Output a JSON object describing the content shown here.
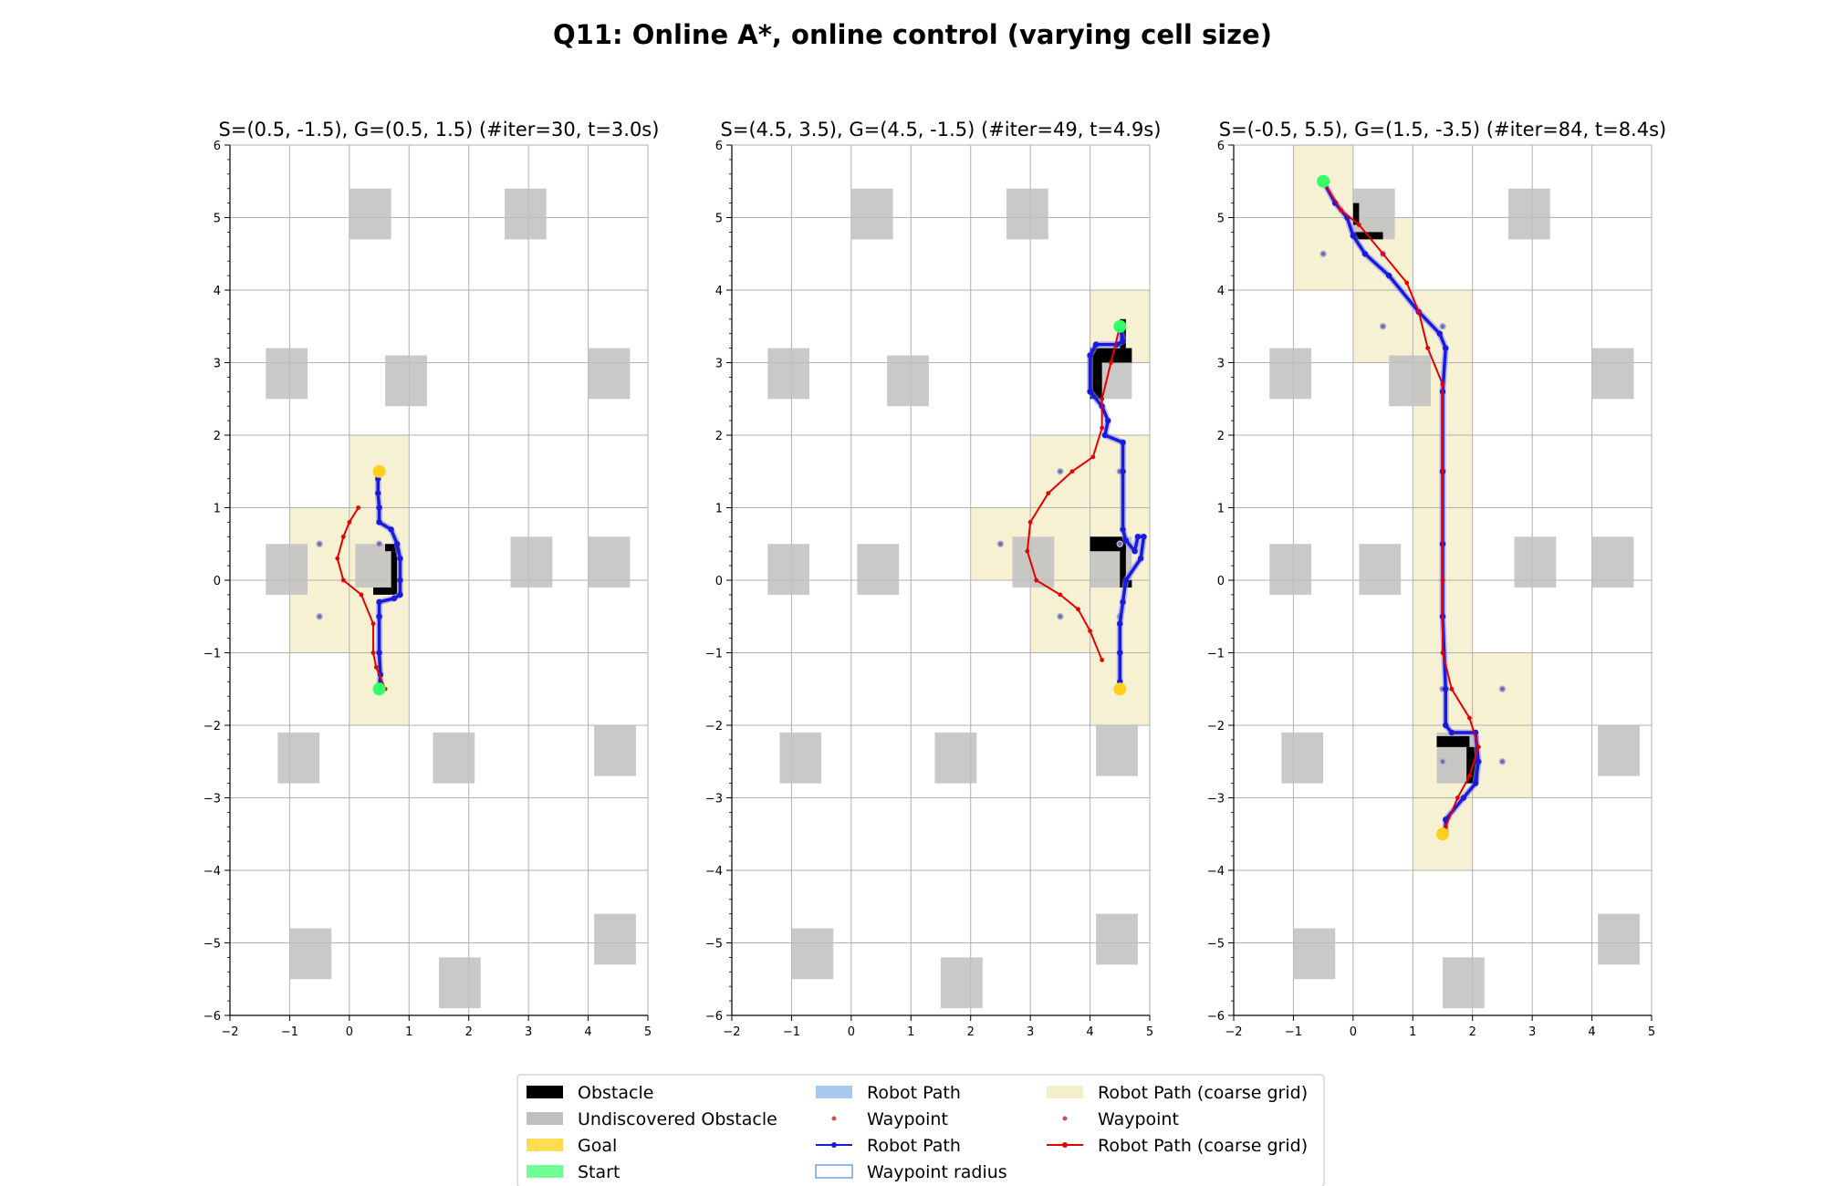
{
  "figure": {
    "title": "Q11: Online A*, online control (varying cell size)"
  },
  "colors": {
    "obstacle": "#000000",
    "undiscovered": "#bfbfbf",
    "goal": "#ffd11a",
    "start": "#33ff66",
    "coarse_cell": "#f5eecb",
    "robot_path": "#1a1adb",
    "coarse_path": "#e60000",
    "waypoint": "#7070a0",
    "grid": "#b0b0b0"
  },
  "chart_data": [
    {
      "type": "scatter",
      "title": "S=(0.5, -1.5), G=(0.5, 1.5) (#iter=30, t=3.0s)",
      "xlim": [
        -2,
        5
      ],
      "ylim": [
        -6,
        6
      ],
      "xticks": [
        -2,
        -1,
        0,
        1,
        2,
        3,
        4,
        5
      ],
      "yticks": [
        -6,
        -5,
        -4,
        -3,
        -2,
        -1,
        0,
        1,
        2,
        3,
        4,
        5,
        6
      ],
      "grid": true,
      "start": [
        0.5,
        -1.5
      ],
      "goal": [
        0.5,
        1.5
      ],
      "coarse_cells": [
        [
          0,
          1,
          1,
          2
        ],
        [
          -1,
          0,
          0,
          1
        ],
        [
          0,
          0,
          1,
          1
        ],
        [
          -1,
          -1,
          0,
          0
        ],
        [
          0,
          -1,
          1,
          0
        ],
        [
          0,
          -2,
          1,
          -1
        ]
      ],
      "discovered_obstacles": [
        [
          0.6,
          0.4,
          0.8,
          0.5
        ],
        [
          0.7,
          -0.2,
          0.8,
          0.4
        ],
        [
          0.4,
          -0.2,
          0.7,
          -0.1
        ]
      ],
      "waypoints": [
        [
          0.5,
          1.5
        ],
        [
          -0.5,
          0.5
        ],
        [
          0.5,
          0.5
        ],
        [
          -0.5,
          -0.5
        ],
        [
          0.5,
          -0.5
        ],
        [
          0.5,
          -1.5
        ]
      ],
      "robot_path": [
        [
          0.5,
          -1.5
        ],
        [
          0.52,
          -1.3
        ],
        [
          0.5,
          -1.0
        ],
        [
          0.5,
          -0.5
        ],
        [
          0.5,
          -0.3
        ],
        [
          0.75,
          -0.25
        ],
        [
          0.85,
          -0.2
        ],
        [
          0.85,
          0.0
        ],
        [
          0.85,
          0.3
        ],
        [
          0.8,
          0.5
        ],
        [
          0.7,
          0.7
        ],
        [
          0.5,
          0.8
        ],
        [
          0.5,
          1.0
        ],
        [
          0.48,
          1.2
        ],
        [
          0.48,
          1.4
        ]
      ],
      "coarse_path": [
        [
          0.6,
          -1.5
        ],
        [
          0.45,
          -1.2
        ],
        [
          0.4,
          -1.0
        ],
        [
          0.4,
          -0.6
        ],
        [
          0.2,
          -0.2
        ],
        [
          -0.1,
          0.0
        ],
        [
          -0.2,
          0.3
        ],
        [
          -0.1,
          0.6
        ],
        [
          0.0,
          0.8
        ],
        [
          0.15,
          1.0
        ]
      ],
      "undiscovered_obstacles": [
        [
          0,
          4.7,
          0.7,
          5.4
        ],
        [
          2.6,
          4.7,
          3.3,
          5.4
        ],
        [
          -1.4,
          2.5,
          -0.7,
          3.2
        ],
        [
          0.6,
          2.4,
          1.3,
          3.1
        ],
        [
          4.0,
          2.5,
          4.7,
          3.2
        ],
        [
          -1.4,
          -0.2,
          -0.7,
          0.5
        ],
        [
          0.1,
          -0.1,
          0.8,
          0.5
        ],
        [
          2.7,
          -0.1,
          3.4,
          0.6
        ],
        [
          4.0,
          -0.1,
          4.7,
          0.6
        ],
        [
          -1.2,
          -2.8,
          -0.5,
          -2.1
        ],
        [
          1.4,
          -2.8,
          2.1,
          -2.1
        ],
        [
          4.1,
          -2.7,
          4.8,
          -2.0
        ],
        [
          -1.0,
          -5.5,
          -0.3,
          -4.8
        ],
        [
          1.5,
          -5.9,
          2.2,
          -5.2
        ],
        [
          4.1,
          -5.3,
          4.8,
          -4.6
        ]
      ]
    },
    {
      "type": "scatter",
      "title": "S=(4.5, 3.5), G=(4.5, -1.5) (#iter=49, t=4.9s)",
      "xlim": [
        -2,
        5
      ],
      "ylim": [
        -6,
        6
      ],
      "xticks": [
        -2,
        -1,
        0,
        1,
        2,
        3,
        4,
        5
      ],
      "yticks": [
        -6,
        -5,
        -4,
        -3,
        -2,
        -1,
        0,
        1,
        2,
        3,
        4,
        5,
        6
      ],
      "grid": true,
      "start": [
        4.5,
        3.5
      ],
      "goal": [
        4.5,
        -1.5
      ],
      "coarse_cells": [
        [
          4,
          3,
          5,
          4
        ],
        [
          3,
          1,
          5,
          2
        ],
        [
          2,
          0,
          3,
          1
        ],
        [
          3,
          0,
          5,
          1
        ],
        [
          3,
          -1,
          5,
          0
        ],
        [
          4,
          -2,
          5,
          -1
        ]
      ],
      "discovered_obstacles": [
        [
          4.0,
          3.0,
          4.7,
          3.2
        ],
        [
          4.0,
          2.5,
          4.2,
          3.0
        ],
        [
          4.5,
          3.2,
          4.6,
          3.6
        ],
        [
          4.0,
          0.4,
          4.6,
          0.6
        ],
        [
          4.5,
          0.0,
          4.6,
          0.5
        ],
        [
          4.5,
          -0.1,
          4.7,
          0.0
        ]
      ],
      "waypoints": [
        [
          4.5,
          3.5
        ],
        [
          3.5,
          1.5
        ],
        [
          4.5,
          1.5
        ],
        [
          2.5,
          0.5
        ],
        [
          4.5,
          0.5
        ],
        [
          3.5,
          -0.5
        ],
        [
          4.5,
          -0.5
        ],
        [
          4.5,
          -1.5
        ]
      ],
      "robot_path": [
        [
          4.5,
          3.5
        ],
        [
          4.55,
          3.3
        ],
        [
          4.45,
          3.25
        ],
        [
          4.1,
          3.25
        ],
        [
          4.0,
          3.1
        ],
        [
          4.0,
          2.6
        ],
        [
          4.2,
          2.4
        ],
        [
          4.3,
          2.2
        ],
        [
          4.25,
          2.0
        ],
        [
          4.55,
          1.9
        ],
        [
          4.55,
          1.5
        ],
        [
          4.55,
          0.7
        ],
        [
          4.6,
          0.55
        ],
        [
          4.75,
          0.4
        ],
        [
          4.8,
          0.6
        ],
        [
          4.9,
          0.6
        ],
        [
          4.85,
          0.3
        ],
        [
          4.6,
          0.0
        ],
        [
          4.55,
          -0.3
        ],
        [
          4.5,
          -0.6
        ],
        [
          4.5,
          -1.0
        ],
        [
          4.5,
          -1.4
        ]
      ],
      "coarse_path": [
        [
          4.5,
          3.5
        ],
        [
          4.35,
          3.0
        ],
        [
          4.2,
          2.5
        ],
        [
          4.2,
          2.1
        ],
        [
          4.05,
          1.7
        ],
        [
          3.7,
          1.5
        ],
        [
          3.3,
          1.2
        ],
        [
          3.0,
          0.8
        ],
        [
          2.95,
          0.4
        ],
        [
          3.1,
          0.0
        ],
        [
          3.5,
          -0.2
        ],
        [
          3.8,
          -0.4
        ],
        [
          4.0,
          -0.7
        ],
        [
          4.2,
          -1.1
        ]
      ],
      "undiscovered_obstacles": [
        [
          0,
          4.7,
          0.7,
          5.4
        ],
        [
          2.6,
          4.7,
          3.3,
          5.4
        ],
        [
          -1.4,
          2.5,
          -0.7,
          3.2
        ],
        [
          0.6,
          2.4,
          1.3,
          3.1
        ],
        [
          4.0,
          2.5,
          4.7,
          3.2
        ],
        [
          -1.4,
          -0.2,
          -0.7,
          0.5
        ],
        [
          0.1,
          -0.2,
          0.8,
          0.5
        ],
        [
          2.7,
          -0.1,
          3.4,
          0.6
        ],
        [
          4.0,
          -0.1,
          4.7,
          0.6
        ],
        [
          -1.2,
          -2.8,
          -0.5,
          -2.1
        ],
        [
          1.4,
          -2.8,
          2.1,
          -2.1
        ],
        [
          4.1,
          -2.7,
          4.8,
          -2.0
        ],
        [
          -1.0,
          -5.5,
          -0.3,
          -4.8
        ],
        [
          1.5,
          -5.9,
          2.2,
          -5.2
        ],
        [
          4.1,
          -5.3,
          4.8,
          -4.6
        ]
      ]
    },
    {
      "type": "scatter",
      "title": "S=(-0.5, 5.5), G=(1.5, -3.5) (#iter=84, t=8.4s)",
      "xlim": [
        -2,
        5
      ],
      "ylim": [
        -6,
        6
      ],
      "xticks": [
        -2,
        -1,
        0,
        1,
        2,
        3,
        4,
        5
      ],
      "yticks": [
        -6,
        -5,
        -4,
        -3,
        -2,
        -1,
        0,
        1,
        2,
        3,
        4,
        5,
        6
      ],
      "grid": true,
      "start": [
        -0.5,
        5.5
      ],
      "goal": [
        1.5,
        -3.5
      ],
      "coarse_cells": [
        [
          -1,
          5,
          0,
          6
        ],
        [
          -1,
          4,
          1,
          5
        ],
        [
          0,
          3,
          2,
          4
        ],
        [
          1,
          -1,
          2,
          3
        ],
        [
          1,
          -3,
          3,
          -1
        ],
        [
          1,
          -4,
          2,
          -3
        ]
      ],
      "discovered_obstacles": [
        [
          0.0,
          4.9,
          0.1,
          5.2
        ],
        [
          0.0,
          4.7,
          0.5,
          4.8
        ],
        [
          1.4,
          -2.3,
          1.95,
          -2.15
        ],
        [
          1.9,
          -2.8,
          2.1,
          -2.3
        ]
      ],
      "waypoints": [
        [
          -0.5,
          5.5
        ],
        [
          -0.5,
          4.5
        ],
        [
          0.5,
          4.5
        ],
        [
          0.5,
          3.5
        ],
        [
          1.5,
          3.5
        ],
        [
          1.5,
          1.5
        ],
        [
          1.5,
          0.5
        ],
        [
          1.5,
          -0.5
        ],
        [
          1.5,
          -1.5
        ],
        [
          2.5,
          -1.5
        ],
        [
          1.5,
          -2.5
        ],
        [
          2.5,
          -2.5
        ],
        [
          1.5,
          -3.5
        ]
      ],
      "robot_path": [
        [
          -0.5,
          5.5
        ],
        [
          -0.3,
          5.2
        ],
        [
          -0.1,
          5.0
        ],
        [
          0.0,
          4.75
        ],
        [
          0.2,
          4.5
        ],
        [
          0.6,
          4.2
        ],
        [
          1.1,
          3.7
        ],
        [
          1.45,
          3.4
        ],
        [
          1.55,
          3.2
        ],
        [
          1.5,
          2.6
        ],
        [
          1.5,
          1.5
        ],
        [
          1.5,
          0.5
        ],
        [
          1.5,
          -0.5
        ],
        [
          1.55,
          -1.5
        ],
        [
          1.55,
          -2.0
        ],
        [
          1.65,
          -2.1
        ],
        [
          2.05,
          -2.1
        ],
        [
          2.1,
          -2.5
        ],
        [
          2.05,
          -2.8
        ],
        [
          1.85,
          -3.0
        ],
        [
          1.55,
          -3.3
        ],
        [
          1.55,
          -3.5
        ]
      ],
      "coarse_path": [
        [
          -0.5,
          5.5
        ],
        [
          -0.2,
          5.1
        ],
        [
          0.1,
          4.9
        ],
        [
          0.5,
          4.5
        ],
        [
          0.9,
          4.1
        ],
        [
          1.1,
          3.7
        ],
        [
          1.25,
          3.2
        ],
        [
          1.5,
          2.7
        ],
        [
          1.5,
          1.5
        ],
        [
          1.5,
          0.0
        ],
        [
          1.5,
          -1.0
        ],
        [
          1.65,
          -1.5
        ],
        [
          1.95,
          -1.9
        ],
        [
          2.1,
          -2.3
        ],
        [
          1.95,
          -2.7
        ],
        [
          1.75,
          -3.0
        ],
        [
          1.55,
          -3.4
        ]
      ],
      "undiscovered_obstacles": [
        [
          0,
          4.7,
          0.7,
          5.4
        ],
        [
          2.6,
          4.7,
          3.3,
          5.4
        ],
        [
          -1.4,
          2.5,
          -0.7,
          3.2
        ],
        [
          0.6,
          2.4,
          1.3,
          3.1
        ],
        [
          4.0,
          2.5,
          4.7,
          3.2
        ],
        [
          -1.4,
          -0.2,
          -0.7,
          0.5
        ],
        [
          0.1,
          -0.2,
          0.8,
          0.5
        ],
        [
          2.7,
          -0.1,
          3.4,
          0.6
        ],
        [
          4.0,
          -0.1,
          4.7,
          0.6
        ],
        [
          -1.2,
          -2.8,
          -0.5,
          -2.1
        ],
        [
          1.4,
          -2.8,
          2.1,
          -2.1
        ],
        [
          4.1,
          -2.7,
          4.8,
          -2.0
        ],
        [
          -1.0,
          -5.5,
          -0.3,
          -4.8
        ],
        [
          1.5,
          -5.9,
          2.2,
          -5.2
        ],
        [
          4.1,
          -5.3,
          4.8,
          -4.6
        ]
      ]
    }
  ],
  "legend": {
    "placement": "bottom-center",
    "columns": [
      [
        {
          "label": "Obstacle",
          "kind": "patch-obstacle"
        },
        {
          "label": "Undiscovered Obstacle",
          "kind": "patch-undiscovered"
        },
        {
          "label": "Goal",
          "kind": "patch-goal"
        },
        {
          "label": "Start",
          "kind": "patch-start"
        }
      ],
      [
        {
          "label": "Robot Path",
          "kind": "patch-robot"
        },
        {
          "label": "Waypoint",
          "kind": "dot-waypoint"
        },
        {
          "label": "Robot Path",
          "kind": "line-robot"
        },
        {
          "label": "Waypoint radius",
          "kind": "patch-radius"
        }
      ],
      [
        {
          "label": "Robot Path (coarse grid)",
          "kind": "patch-coarse"
        },
        {
          "label": "Waypoint",
          "kind": "dot-waypoint-red"
        },
        {
          "label": "Robot Path (coarse grid)",
          "kind": "line-coarse"
        }
      ]
    ]
  }
}
